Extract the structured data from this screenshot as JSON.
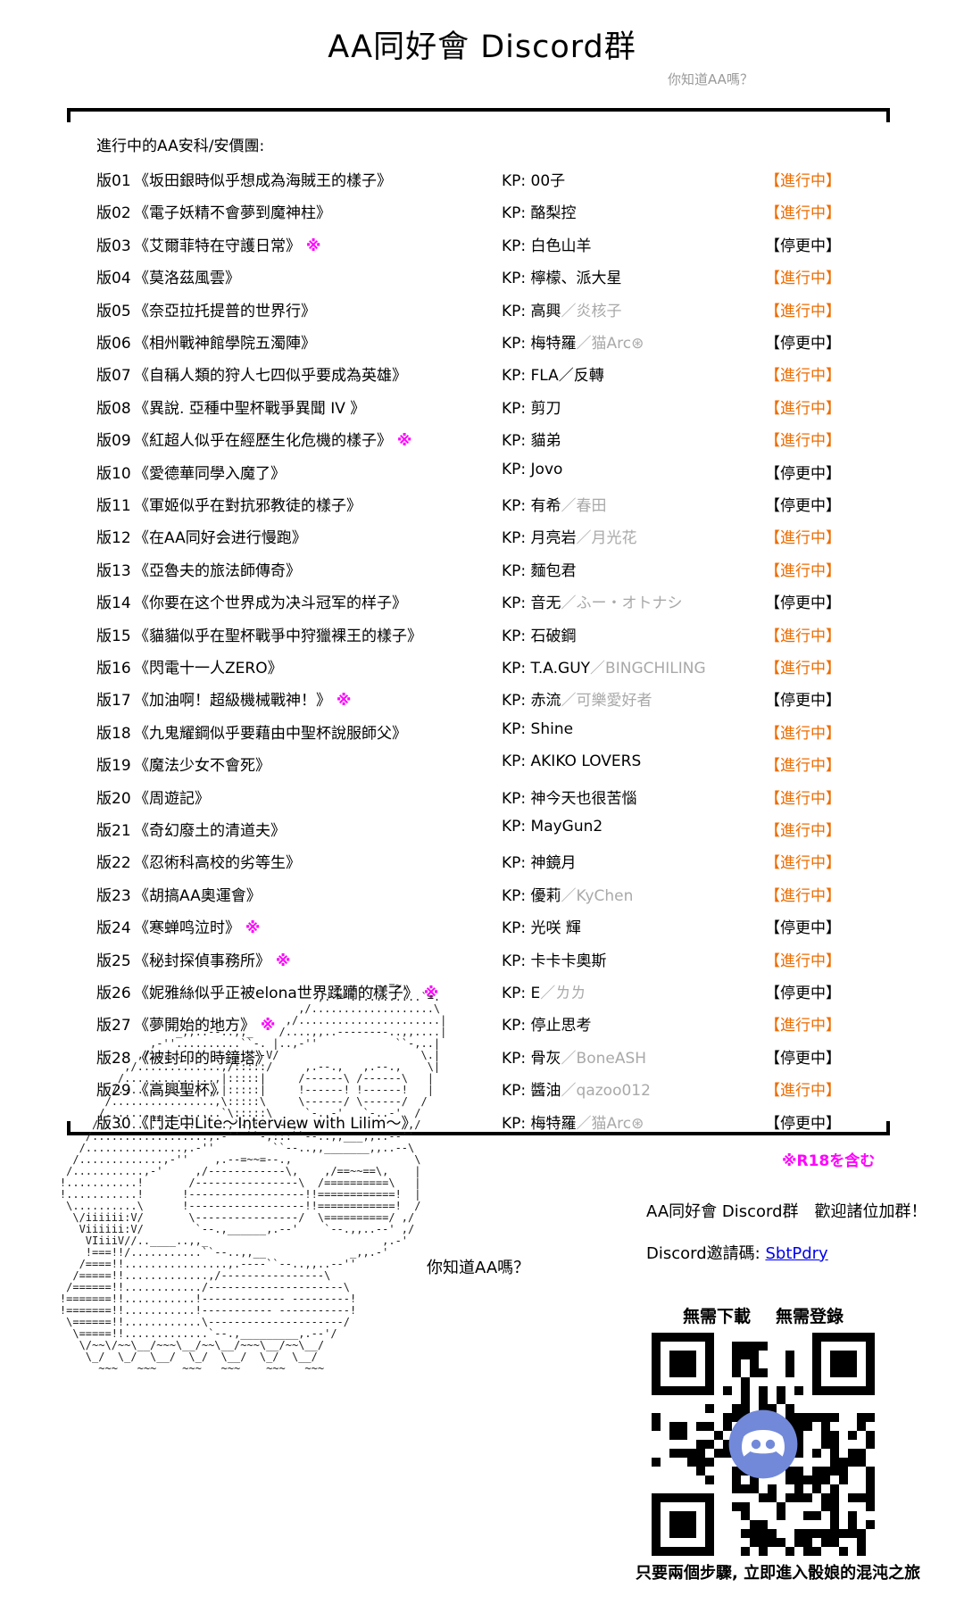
{
  "page": {
    "title": "AA同好會 Discord群",
    "subtitle": "你知道AA嗎？"
  },
  "colors": {
    "active_status": "#ED6C00",
    "magenta": "#FF00FF",
    "gray_secondary": "#A9A9A9",
    "link_blue": "#0000EE",
    "discord_blurple": "#7289DA"
  },
  "list": {
    "header": "進行中的AA安科/安價團:",
    "kp_prefix": "KP:",
    "separator": "／",
    "status_active": "【進行中】",
    "status_paused": "【停更中】",
    "r18_mark": "※",
    "entries": [
      {
        "no": "版01",
        "title": "《坂田銀時似乎想成為海賊王的樣子》",
        "r18": false,
        "kp": "00子",
        "kp2": "",
        "status": "active"
      },
      {
        "no": "版02",
        "title": "《電子妖精不會夢到魔神柱》",
        "r18": false,
        "kp": "酪梨控",
        "kp2": "",
        "status": "active"
      },
      {
        "no": "版03",
        "title": "《艾爾菲特在守護日常》",
        "r18": true,
        "kp": "白色山羊",
        "kp2": "",
        "status": "paused"
      },
      {
        "no": "版04",
        "title": "《莫洛茲風雲》",
        "r18": false,
        "kp": "檸檬、派大星",
        "kp2": "",
        "status": "active"
      },
      {
        "no": "版05",
        "title": "《奈亞拉托提普的世界行》",
        "r18": false,
        "kp": "高興",
        "kp2": "炎核子",
        "status": "active"
      },
      {
        "no": "版06",
        "title": "《相州戰神館學院五濁陣》",
        "r18": false,
        "kp": "梅特羅",
        "kp2": "猫Arc⊛",
        "status": "paused"
      },
      {
        "no": "版07",
        "title": "《自稱人類的狩人七四似乎要成為英雄》",
        "r18": false,
        "kp": "FLA／反轉",
        "kp2": "",
        "status": "active"
      },
      {
        "no": "版08",
        "title": "《異說. 亞種中聖杯戰爭異聞 IV 》",
        "r18": false,
        "kp": "剪刀",
        "kp2": "",
        "status": "active"
      },
      {
        "no": "版09",
        "title": "《紅超人似乎在經歷生化危機的樣子》",
        "r18": true,
        "kp": "貓弟",
        "kp2": "",
        "status": "active"
      },
      {
        "no": "版10",
        "title": "《愛德華同學入魔了》",
        "r18": false,
        "kp": "Jovo",
        "kp2": "",
        "status": "paused"
      },
      {
        "no": "版11",
        "title": "《軍姬似乎在對抗邪教徒的樣子》",
        "r18": false,
        "kp": "有希",
        "kp2": "春田",
        "status": "paused"
      },
      {
        "no": "版12",
        "title": "《在AA同好会进行慢跑》",
        "r18": false,
        "kp": "月亮岩",
        "kp2": "月光花",
        "status": "active"
      },
      {
        "no": "版13",
        "title": "《亞魯夫的旅法師傳奇》",
        "r18": false,
        "kp": "麵包君",
        "kp2": "",
        "status": "active"
      },
      {
        "no": "版14",
        "title": "《你要在这个世界成为决斗冠军的样子》",
        "r18": false,
        "kp": "音无",
        "kp2": "ふー・オトナシ",
        "status": "paused"
      },
      {
        "no": "版15",
        "title": "《貓貓似乎在聖杯戰爭中狩獵裸王的樣子》",
        "r18": false,
        "kp": "石破鋼",
        "kp2": "",
        "status": "active"
      },
      {
        "no": "版16",
        "title": "《閃電十一人ZERO》",
        "r18": false,
        "kp": "T.A.GUY",
        "kp2": "BINGCHILING",
        "status": "active"
      },
      {
        "no": "版17",
        "title": "《加油啊！超級機械戰神！》",
        "r18": true,
        "kp": "赤流",
        "kp2": "可樂愛好者",
        "status": "paused"
      },
      {
        "no": "版18",
        "title": "《九鬼耀鋼似乎要藉由中聖杯說服師父》",
        "r18": false,
        "kp": "Shine",
        "kp2": "",
        "status": "active"
      },
      {
        "no": "版19",
        "title": "《魔法少女不會死》",
        "r18": false,
        "kp": "AKIKO LOVERS",
        "kp2": "",
        "status": "active"
      },
      {
        "no": "版20",
        "title": "《周遊記》",
        "r18": false,
        "kp": "神今天也很苦惱",
        "kp2": "",
        "status": "active"
      },
      {
        "no": "版21",
        "title": "《奇幻廢土的清道夫》",
        "r18": false,
        "kp": "MayGun2",
        "kp2": "",
        "status": "active"
      },
      {
        "no": "版22",
        "title": "《忍術科高校的劣等生》",
        "r18": false,
        "kp": "神鏡月",
        "kp2": "",
        "status": "active"
      },
      {
        "no": "版23",
        "title": "《胡搞AA奧運會》",
        "r18": false,
        "kp": "優莉",
        "kp2": "KyChen",
        "status": "active"
      },
      {
        "no": "版24",
        "title": "《寒蝉鸣泣时》",
        "r18": true,
        "kp": "光咲 輝",
        "kp2": "",
        "status": "paused"
      },
      {
        "no": "版25",
        "title": "《秘封探偵事務所》",
        "r18": true,
        "kp": "卡卡卡奧斯",
        "kp2": "",
        "status": "active"
      },
      {
        "no": "版26",
        "title": "《妮雅絲似乎正被elona世界蹂躪的樣子》",
        "r18": true,
        "kp": "E",
        "kp2": "ㄌㄌ",
        "status": "paused"
      },
      {
        "no": "版27",
        "title": "《夢開始的地方》",
        "r18": true,
        "kp": "停止思考",
        "kp2": "",
        "status": "active"
      },
      {
        "no": "版28",
        "title": "《被封印的時鐘塔》",
        "r18": false,
        "kp": "骨灰",
        "kp2": "BoneASH",
        "status": "paused"
      },
      {
        "no": "版29",
        "title": "《高興聖杯》",
        "r18": false,
        "kp": "醬油",
        "kp2": "qazoo012",
        "status": "active"
      },
      {
        "no": "版30",
        "title": "《鬥走中Lite～Interview with Lilim～》",
        "r18": false,
        "kp": "梅特羅",
        "kp2": "猫Arc⊛",
        "status": "paused"
      }
    ]
  },
  "footer": {
    "r18_note": "※R18を含む",
    "aa_caption": "你知道AA嗎？",
    "welcome": "AA同好會 Discord群　歡迎諸位加群！",
    "invite_label": "Discord邀請碼:",
    "invite_code": "SbtPdry",
    "no_download": "無需下載",
    "no_register": "無需登錄",
    "qr_caption": "只要兩個步驟, 立即進入骰娘的混沌之旅",
    "discord_icon": "discord-logo"
  },
  "ascii_art": {
    "lines": [
      "                                                _,,..--=~,",
      "                                            ,.-='...........`=.",
      "                                         ,/...................\\",
      "                                       ,/......................|",
      "                      _,,..--..,,_    /....,,..--------..,,....|",
      "                  ,-''..........``-. |..,-''            ``-,..|",
      "                ,/..............,.--V/                      \\.|",
      "              ,/.............,/:::::/     ,.--.,   ,.--.,    \\|",
      "             /..............,|:::::|     /------\\ /------\\   |",
      "            /...............,|:::::|     !------! !------!   |",
      "           /................,\\:::::\\     \\------/ \\------/  /",
      "          /..................`\\:::::\\     `-..-'   `-..-'  /",
      "         /....................,`-,:::`-.,                 ,/",
      "        /..................,.-'' ``-,:::``--..,,___,,..--''",
      "       /...............,.-''         ``--..,,_______,,..--\\",
      "      /.............,-''    ,.--=~~=--.,                   \\",
      "     /...........,-'     ,/------------\\,    ,/==~~==\\,    |",
      "    !...........!       /----------------\\  /==========\\   |",
      "    !...........!      !------------------!!============!  |",
      "     \\..........\\      !------------------!!============!  /",
      "      \\/iiiiii:V/       \\----------------/  \\==========/ ,/",
      "       Viiiiii:V/        `--.,______,.--'    `--.,,..--' ,/",
      "        VIiiiV//..____..,,_                           ,.-'",
      "        !===!!/...........``--..,,__             _,,.-'",
      "       /====!!................,.----``--..,,..--''",
      "      /=====!!.............,/----------------\\",
      "     /======!!............/---------------------\\",
      "    !=======!!...........!------------- ---------!",
      "    !=======!!...........!----------- -----------!",
      "     \\======!!............\\---------------------/",
      "      \\=====!!.............`--.,_________,.--'/",
      "       \\/~~\\/~~\\__/~~~\\__/~~\\__/~~~\\__/~~\\__/",
      "        \\_/  \\_/  \\__/  \\_/  \\__/  \\_/  \\__/",
      "          ~~~   ~~~    ~~~   ~~~    ~~~   ~~~"
    ]
  }
}
